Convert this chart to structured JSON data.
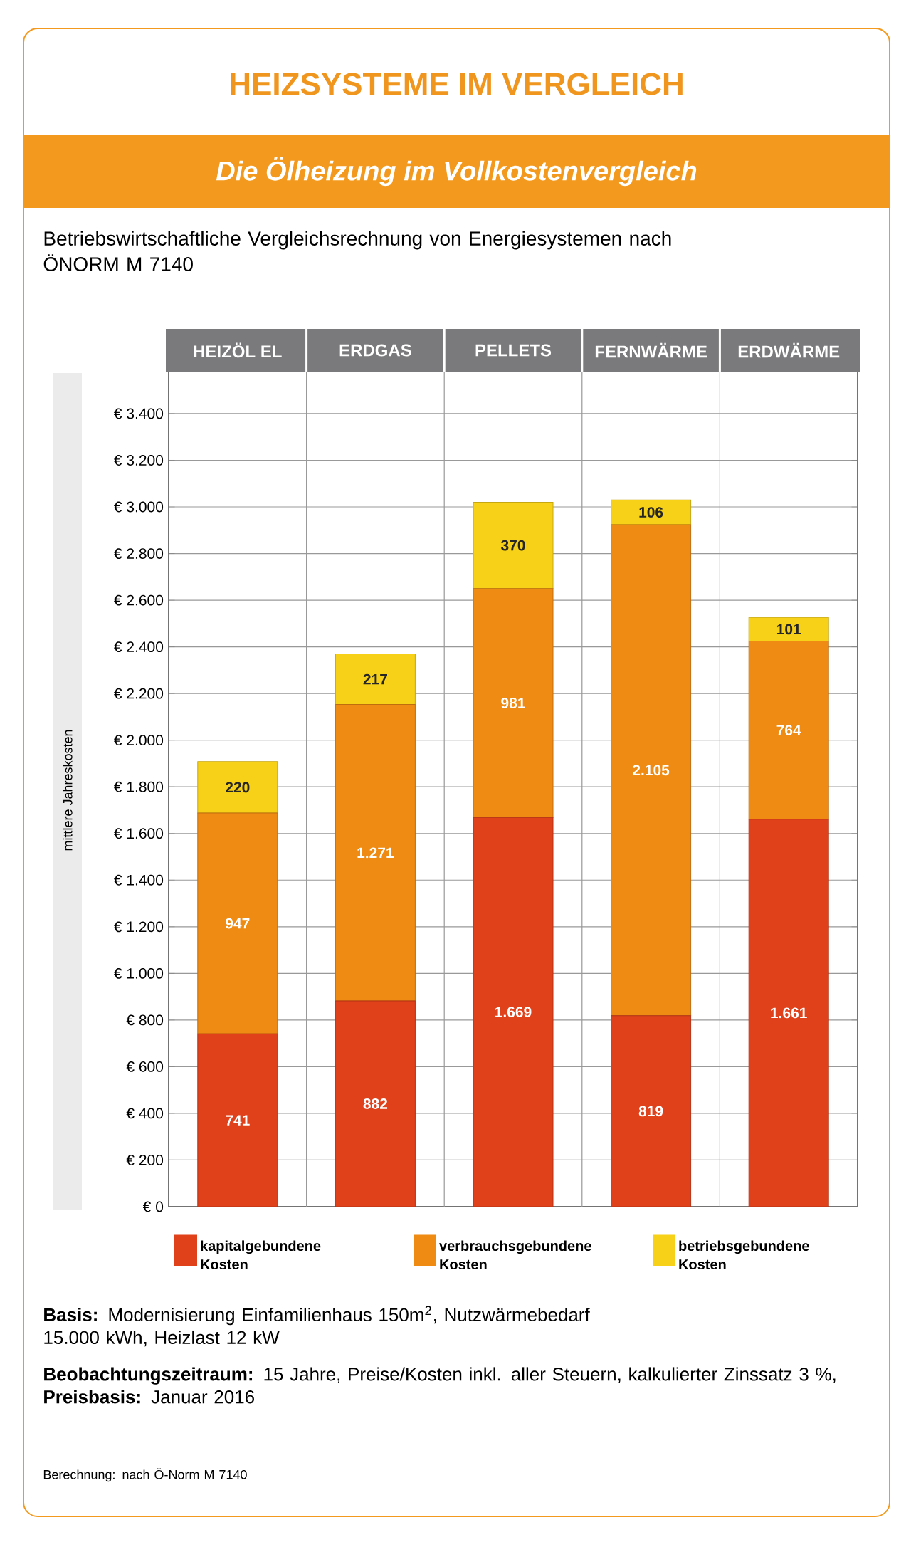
{
  "chart_data": {
    "type": "bar",
    "stacked": true,
    "title": "HEIZSYSTEME IM VERGLEICH",
    "subtitle": "Die Ölheizung im Vollkostenvergleich",
    "ylabel": "mittlere Jahreskosten",
    "categories": [
      "HEIZÖL EL",
      "ERDGAS",
      "PELLETS",
      "FERNWÄRME",
      "ERDWÄRME"
    ],
    "series": [
      {
        "name": "kapitalgebundene Kosten",
        "color": "#e0401a",
        "values": [
          741,
          882,
          1669,
          819,
          1661
        ],
        "value_labels": [
          "741",
          "882",
          "1.669",
          "819",
          "1.661"
        ]
      },
      {
        "name": "verbrauchsgebundene Kosten",
        "color": "#ef8a12",
        "values": [
          947,
          1271,
          981,
          2105,
          764
        ],
        "value_labels": [
          "947",
          "1.271",
          "981",
          "2.105",
          "764"
        ]
      },
      {
        "name": "betriebsgebundene Kosten",
        "color": "#f7d117",
        "values": [
          220,
          217,
          370,
          106,
          101
        ],
        "value_labels": [
          "220",
          "217",
          "370",
          "106",
          "101"
        ]
      }
    ],
    "ylim": [
      0,
      3580
    ],
    "yticks": [
      {
        "value": 0,
        "label": "€ 0"
      },
      {
        "value": 200,
        "label": "€ 200"
      },
      {
        "value": 400,
        "label": "€ 400"
      },
      {
        "value": 600,
        "label": "€ 600"
      },
      {
        "value": 800,
        "label": "€ 800"
      },
      {
        "value": 1000,
        "label": "€ 1.000"
      },
      {
        "value": 1200,
        "label": "€ 1.200"
      },
      {
        "value": 1400,
        "label": "€ 1.400"
      },
      {
        "value": 1600,
        "label": "€ 1.600"
      },
      {
        "value": 1800,
        "label": "€ 1.800"
      },
      {
        "value": 2000,
        "label": "€ 2.000"
      },
      {
        "value": 2200,
        "label": "€ 2.200"
      },
      {
        "value": 2400,
        "label": "€ 2.400"
      },
      {
        "value": 2600,
        "label": "€ 2.600"
      },
      {
        "value": 2800,
        "label": "€ 2.800"
      },
      {
        "value": 3000,
        "label": "€ 3.000"
      },
      {
        "value": 3200,
        "label": "€ 3.200"
      },
      {
        "value": 3400,
        "label": "€ 3.400"
      }
    ],
    "grid": "y",
    "legend": "bottom",
    "annotations": [
      "Betriebswirtschaftliche Vergleichsrechnung von Energiesystemen nach ÖNORM M 7140",
      "**Basis:** Modernisierung Einfamilienhaus 150m$^{2}$, Nutzwärmebedarf 15.000 kWh, Heizlast 12 kW",
      "**Beobachtungszeitraum:** 15 Jahre, Preise/Kosten inkl. aller Steuern, kalkulierter Zinssatz 3 %, **Preisbasis:** Januar 2016",
      "Berechnung: nach Ö-Norm M 7140"
    ]
  }
}
